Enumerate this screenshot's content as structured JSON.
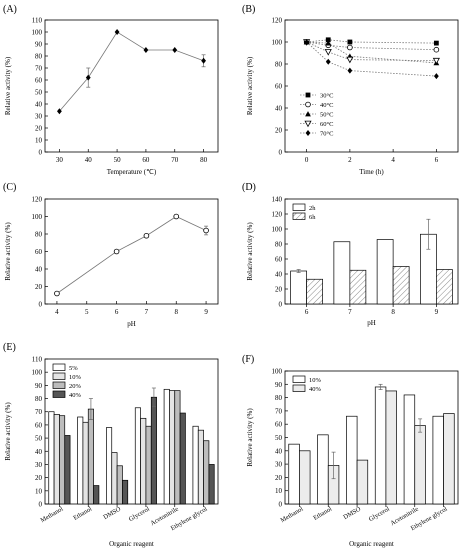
{
  "chart_data": [
    {
      "type": "line",
      "panel_label": "(A)",
      "xlabel": "Temperature (℃)",
      "ylabel": "Relative activity (%)",
      "x_ticks": [
        "30",
        "40",
        "50",
        "60",
        "70",
        "80"
      ],
      "y_ticks": [
        "0",
        "10",
        "20",
        "30",
        "40",
        "50",
        "60",
        "70",
        "80",
        "90",
        "100",
        "110"
      ],
      "xlim": [
        25,
        85
      ],
      "ylim": [
        0,
        110
      ],
      "series": [
        {
          "x": [
            30,
            40,
            50,
            60,
            70,
            80
          ],
          "values": [
            34,
            62,
            100,
            85,
            85,
            76
          ],
          "errors": [
            0,
            8,
            0,
            0,
            0,
            5
          ]
        }
      ]
    },
    {
      "type": "line",
      "panel_label": "(B)",
      "xlabel": "Time (h)",
      "ylabel": "Relative activity (%)",
      "x_ticks": [
        "0",
        "2",
        "4",
        "6"
      ],
      "y_ticks": [
        "0",
        "20",
        "40",
        "60",
        "80",
        "100",
        "120"
      ],
      "xlim": [
        -1,
        7
      ],
      "ylim": [
        0,
        120
      ],
      "legend_position": "lower-left",
      "series": [
        {
          "name": "30°C",
          "marker": "square",
          "x": [
            0,
            1,
            2,
            6
          ],
          "values": [
            100,
            102,
            100,
            99
          ]
        },
        {
          "name": "40°C",
          "marker": "circle-open",
          "x": [
            0,
            1,
            2,
            6
          ],
          "values": [
            100,
            97,
            95,
            93
          ]
        },
        {
          "name": "50°C",
          "marker": "triangle",
          "x": [
            0,
            1,
            2,
            6
          ],
          "values": [
            100,
            99,
            87,
            81
          ]
        },
        {
          "name": "60°C",
          "marker": "triangle-open",
          "x": [
            0,
            1,
            2,
            6
          ],
          "values": [
            100,
            91,
            84,
            83
          ]
        },
        {
          "name": "70°C",
          "marker": "diamond",
          "x": [
            0,
            1,
            2,
            6
          ],
          "values": [
            100,
            82,
            74,
            69
          ]
        }
      ]
    },
    {
      "type": "line",
      "panel_label": "(C)",
      "xlabel": "pH",
      "ylabel": "Relative activity (%)",
      "x_ticks": [
        "4",
        "5",
        "6",
        "7",
        "8",
        "9"
      ],
      "y_ticks": [
        "0",
        "20",
        "40",
        "60",
        "80",
        "100",
        "120"
      ],
      "xlim": [
        3.6,
        9.4
      ],
      "ylim": [
        0,
        120
      ],
      "series": [
        {
          "x": [
            4,
            6,
            7,
            8,
            9
          ],
          "values": [
            12,
            60,
            78,
            100,
            84
          ],
          "errors": [
            0,
            0,
            0,
            0,
            5
          ]
        }
      ]
    },
    {
      "type": "bar",
      "panel_label": "(D)",
      "xlabel": "pH",
      "ylabel": "Relative activity (%)",
      "categories": [
        "6",
        "7",
        "8",
        "9"
      ],
      "y_ticks": [
        "0",
        "20",
        "40",
        "60",
        "80",
        "100",
        "120",
        "140"
      ],
      "ylim": [
        0,
        140
      ],
      "legend_position": "top-left",
      "series": [
        {
          "name": "2h",
          "values": [
            44,
            83,
            86,
            93
          ],
          "errors": [
            2,
            0,
            0,
            20
          ]
        },
        {
          "name": "6h",
          "values": [
            33,
            45,
            50,
            46
          ],
          "errors": [
            0,
            0,
            0,
            0
          ]
        }
      ]
    },
    {
      "type": "bar",
      "panel_label": "(E)",
      "xlabel": "Organic reagent",
      "ylabel": "Relative activity (%)",
      "categories": [
        "Methanol",
        "Ethanol",
        "DMSO",
        "Glycerol",
        "Acetonitrile",
        "Ethylene glycol"
      ],
      "y_ticks": [
        "0",
        "10",
        "20",
        "30",
        "40",
        "50",
        "60",
        "70",
        "80",
        "90",
        "100",
        "110"
      ],
      "ylim": [
        0,
        110
      ],
      "legend_position": "top-left",
      "series": [
        {
          "name": "5%",
          "values": [
            70,
            66,
            58,
            73,
            87,
            59
          ],
          "errors": [
            0,
            0,
            0,
            0,
            0,
            0
          ]
        },
        {
          "name": "10%",
          "values": [
            68,
            62,
            39,
            65,
            86,
            56
          ],
          "errors": [
            0,
            0,
            0,
            0,
            0,
            0
          ]
        },
        {
          "name": "20%",
          "values": [
            67,
            72,
            29,
            59,
            86,
            48
          ],
          "errors": [
            0,
            8,
            0,
            0,
            0,
            0
          ]
        },
        {
          "name": "40%",
          "values": [
            52,
            14,
            18,
            81,
            69,
            30
          ],
          "errors": [
            0,
            0,
            0,
            7,
            0,
            0
          ]
        }
      ]
    },
    {
      "type": "bar",
      "panel_label": "(F)",
      "xlabel": "Organic reagent",
      "ylabel": "Relative activity (%)",
      "categories": [
        "Methanol",
        "Ethanol",
        "DMSO",
        "Glycerol",
        "Acetonitrile",
        "Ethylene glycol"
      ],
      "y_ticks": [
        "0",
        "10",
        "20",
        "30",
        "40",
        "50",
        "60",
        "70",
        "80",
        "90",
        "100"
      ],
      "ylim": [
        0,
        100
      ],
      "legend_position": "top-left",
      "series": [
        {
          "name": "10%",
          "values": [
            45,
            52,
            66,
            88,
            82,
            66
          ],
          "errors": [
            0,
            0,
            0,
            2,
            0,
            0
          ]
        },
        {
          "name": "40%",
          "values": [
            40,
            29,
            33,
            85,
            59,
            68
          ],
          "errors": [
            0,
            10,
            0,
            0,
            5,
            0
          ]
        }
      ]
    }
  ]
}
